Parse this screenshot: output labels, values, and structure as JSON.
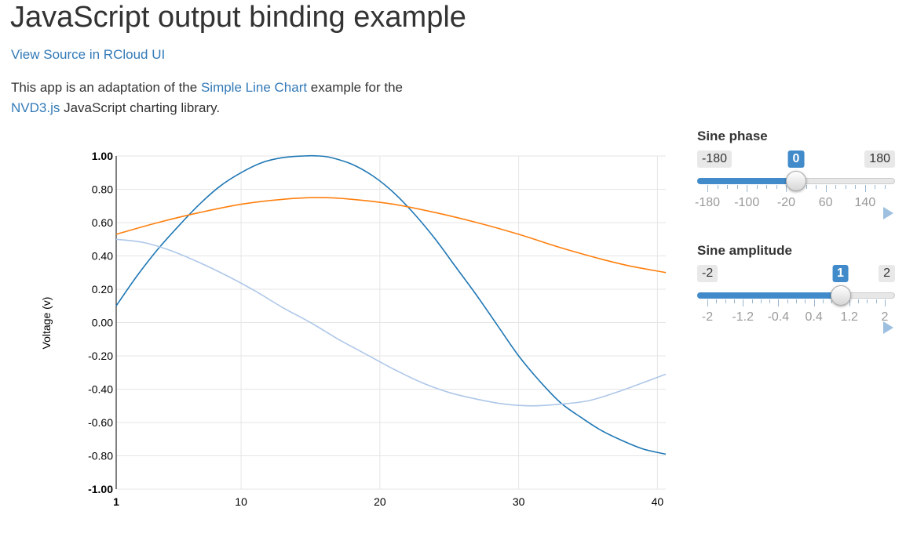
{
  "page": {
    "title": "JavaScript output binding example",
    "source_link": "View Source in RCloud UI",
    "description": {
      "part1": "This app is an adaptation of the ",
      "link1": "Simple Line Chart",
      "part2": " example for the ",
      "link2": "NVD3.js",
      "part3": " JavaScript charting library."
    }
  },
  "sliders": [
    {
      "label": "Sine phase",
      "min": -180,
      "max": 180,
      "value": 0,
      "min_label": "-180",
      "max_label": "180",
      "value_label": "0",
      "grid": [
        -180,
        -100,
        -20,
        60,
        140
      ],
      "grid_labels": [
        "-180",
        "-100",
        "-20",
        "60",
        "140"
      ],
      "minor_step": 20
    },
    {
      "label": "Sine amplitude",
      "min": -2,
      "max": 2,
      "value": 1,
      "min_label": "-2",
      "max_label": "2",
      "value_label": "1",
      "grid": [
        -2,
        -1.2,
        -0.4,
        0.4,
        1.2,
        2
      ],
      "grid_labels": [
        "-2",
        "-1.2",
        "-0.4",
        "0.4",
        "1.2",
        "2"
      ],
      "minor_step": 0.2
    }
  ],
  "icons": {
    "play": "play-icon"
  },
  "colors": {
    "series_dark_blue": "#1f77b4",
    "series_orange": "#ff7f0e",
    "series_light_blue": "#aec7e8",
    "accent": "#428bca"
  },
  "chart_data": {
    "type": "line",
    "title": "",
    "xlabel": "",
    "ylabel": "Voltage (v)",
    "xlim": [
      1,
      40.6
    ],
    "ylim": [
      -1,
      1
    ],
    "x_ticks": [
      1,
      10,
      20,
      30,
      40
    ],
    "x_tick_labels": [
      "1",
      "10",
      "20",
      "30",
      "40"
    ],
    "y_ticks": [
      1,
      0.8,
      0.6,
      0.4,
      0.2,
      0,
      -0.2,
      -0.4,
      -0.6,
      -0.8,
      -1
    ],
    "y_tick_labels": [
      "1.00",
      "0.80",
      "0.60",
      "0.40",
      "0.20",
      "0.00",
      "-0.20",
      "-0.40",
      "-0.60",
      "-0.80",
      "-1.00"
    ],
    "grid": true,
    "legend": "none",
    "series": [
      {
        "color": "#1f77b4",
        "x": [
          1,
          2.5,
          4,
          5.5,
          7,
          8.5,
          10,
          11.5,
          13,
          14.5,
          15.6,
          16.5,
          18,
          19.5,
          21,
          22.5,
          24,
          25.5,
          27,
          28.5,
          30,
          31.5,
          33,
          34.5,
          36,
          37.5,
          39,
          40.6
        ],
        "values": [
          0.1,
          0.28,
          0.44,
          0.58,
          0.71,
          0.82,
          0.9,
          0.96,
          0.99,
          1.0,
          1.0,
          0.99,
          0.95,
          0.88,
          0.78,
          0.65,
          0.5,
          0.33,
          0.16,
          -0.02,
          -0.2,
          -0.35,
          -0.48,
          -0.57,
          -0.65,
          -0.71,
          -0.76,
          -0.79
        ]
      },
      {
        "color": "#ff7f0e",
        "x": [
          1,
          4,
          7,
          10,
          13,
          15.6,
          18,
          21,
          24,
          27,
          30,
          33,
          36,
          38,
          40.6
        ],
        "values": [
          0.53,
          0.6,
          0.66,
          0.71,
          0.74,
          0.75,
          0.74,
          0.71,
          0.66,
          0.6,
          0.53,
          0.45,
          0.38,
          0.34,
          0.3
        ]
      },
      {
        "color": "#aec7e8",
        "x": [
          1,
          3,
          5,
          7,
          9,
          11,
          13,
          15,
          17,
          19,
          21,
          23,
          25,
          27,
          29,
          31,
          33,
          35,
          37,
          39,
          40.6
        ],
        "values": [
          0.5,
          0.48,
          0.43,
          0.36,
          0.28,
          0.19,
          0.09,
          0.0,
          -0.1,
          -0.19,
          -0.28,
          -0.36,
          -0.42,
          -0.46,
          -0.49,
          -0.5,
          -0.49,
          -0.47,
          -0.42,
          -0.36,
          -0.31
        ]
      }
    ]
  }
}
